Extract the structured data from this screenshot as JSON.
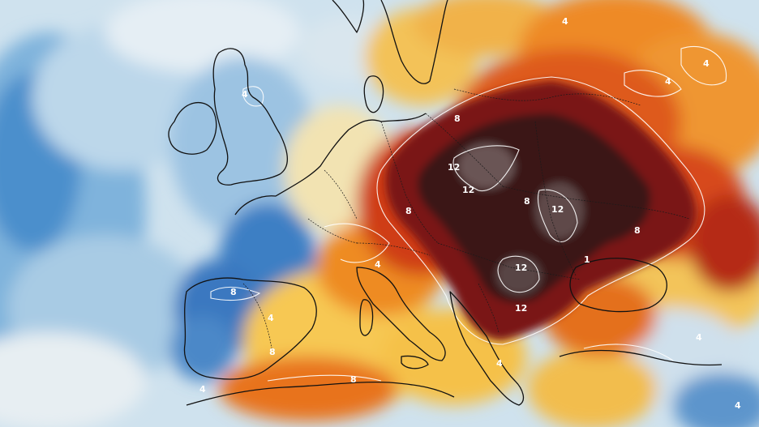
{
  "map": {
    "contour_labels": [
      {
        "id": "uk-4",
        "text": "4"
      },
      {
        "id": "scandinavia-4",
        "text": "4"
      },
      {
        "id": "russia-4a",
        "text": "4"
      },
      {
        "id": "russia-4b",
        "text": "4"
      },
      {
        "id": "poland-8",
        "text": "8"
      },
      {
        "id": "central-12a",
        "text": "12"
      },
      {
        "id": "central-12b",
        "text": "12"
      },
      {
        "id": "hungary-8",
        "text": "8"
      },
      {
        "id": "ukraine-12",
        "text": "12"
      },
      {
        "id": "romania-12",
        "text": "12"
      },
      {
        "id": "balkan-12",
        "text": "12"
      },
      {
        "id": "east-8",
        "text": "8"
      },
      {
        "id": "east-1",
        "text": "1"
      },
      {
        "id": "germany-8",
        "text": "8"
      },
      {
        "id": "alps-4",
        "text": "4"
      },
      {
        "id": "iberia-8",
        "text": "8"
      },
      {
        "id": "iberia-4",
        "text": "4"
      },
      {
        "id": "italy-8",
        "text": "8"
      },
      {
        "id": "north-africa-8",
        "text": "8"
      },
      {
        "id": "africa-4",
        "text": "4"
      },
      {
        "id": "greece-4",
        "text": "4"
      },
      {
        "id": "turkey-4",
        "text": "4"
      },
      {
        "id": "mideast-4",
        "text": "4"
      }
    ],
    "colors": {
      "cold_deep": "#2a6fb8",
      "cold_mid": "#6fa9d8",
      "cold_light": "#b9d6ea",
      "cold_pale": "#e3eef5",
      "neutral": "#f3ead2",
      "warm_yellow": "#f6c44a",
      "warm_orange": "#ef8a1c",
      "hot_red": "#d6401a",
      "hot_dark_red": "#8e1a12",
      "extreme": "#3a1412",
      "extreme_core": "#5a4646"
    }
  }
}
